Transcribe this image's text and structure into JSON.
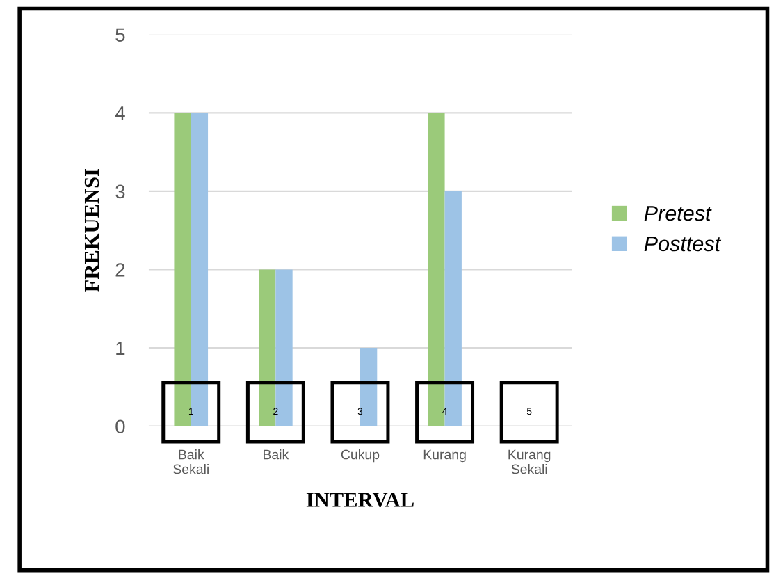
{
  "chart_data": {
    "type": "bar",
    "xlabel": "INTERVAL",
    "ylabel": "FREKUENSI",
    "categories": [
      "Baik\nSekali",
      "Baik",
      "Cukup",
      "Kurang",
      "Kurang\nSekali"
    ],
    "series": [
      {
        "name": "Pretest",
        "color": "#9bca7a",
        "values": [
          4,
          2,
          0,
          4,
          0
        ]
      },
      {
        "name": "Posttest",
        "color": "#9dc3e6",
        "values": [
          4,
          2,
          1,
          3,
          0
        ]
      }
    ],
    "annotations": [
      {
        "text": "1",
        "x": "Baik\nSekali",
        "y": 0.18
      },
      {
        "text": "2",
        "x": "Baik",
        "y": 0.18
      },
      {
        "text": "3",
        "x": "Cukup",
        "y": 0.18
      },
      {
        "text": "4",
        "x": "Kurang",
        "y": 0.18
      },
      {
        "text": "5",
        "x": "Kurang\nSekali",
        "y": 0.18
      }
    ],
    "ylim": [
      0,
      5
    ],
    "yticks": [
      0,
      1,
      2,
      3,
      4,
      5
    ],
    "grid": "y",
    "legend": "right"
  }
}
